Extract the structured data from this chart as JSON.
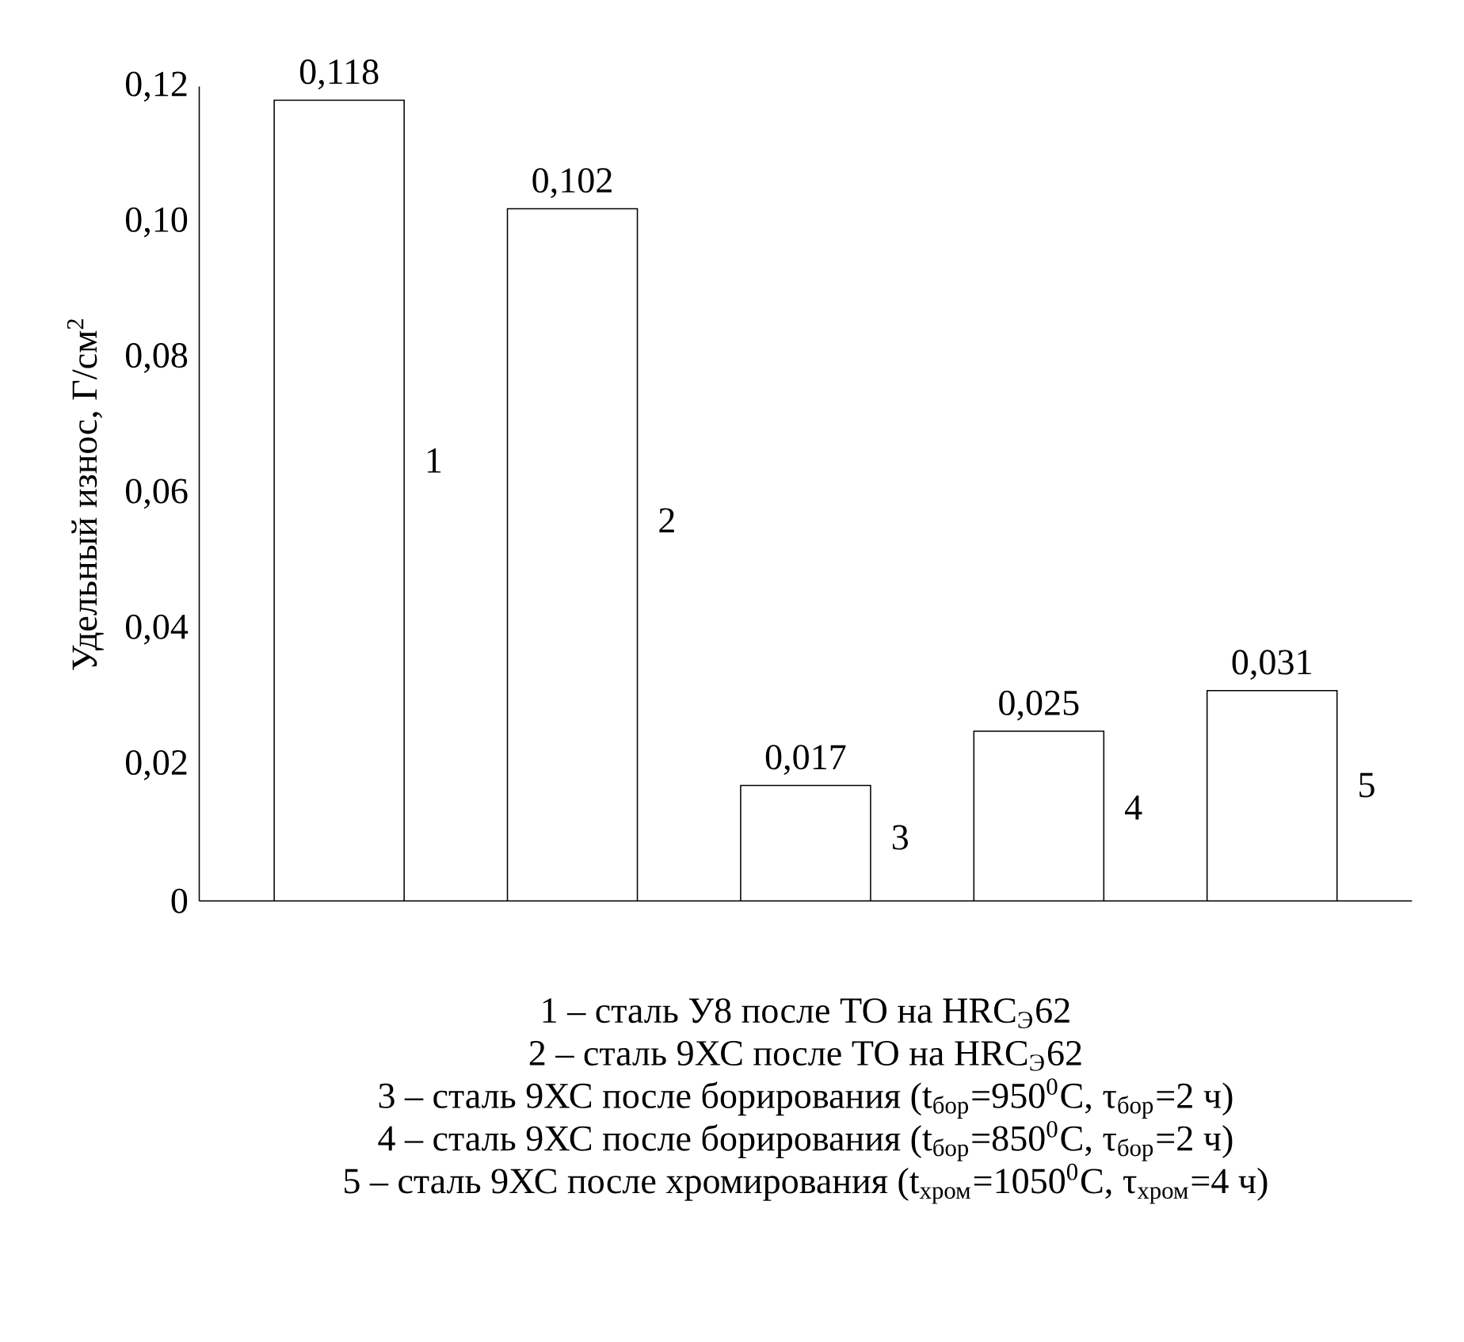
{
  "chart_data": {
    "type": "bar",
    "categories": [
      "1",
      "2",
      "3",
      "4",
      "5"
    ],
    "values": [
      0.118,
      0.102,
      0.017,
      0.025,
      0.031
    ],
    "value_labels": [
      "0,118",
      "0,102",
      "0,017",
      "0,025",
      "0,031"
    ],
    "color": "#ffffff",
    "ylabel": "Удельный износ, Г/см$^{2}$",
    "ylim": [
      0,
      0.12
    ],
    "yticks": [
      0,
      {
        "value": 0.02,
        "label": "0,02"
      },
      {
        "value": 0.04,
        "label": "0,04"
      },
      {
        "value": 0.06,
        "label": "0,06"
      },
      {
        "value": 0.08,
        "label": "0,08"
      },
      {
        "value": 0.1,
        "label": "0,10"
      },
      {
        "value": 0.12,
        "label": "0,12"
      }
    ],
    "grid": false,
    "annotations": [
      "1 – сталь У8 после ТО на HRC$_{Э}$62",
      "2 – сталь 9ХС после ТО на HRC$_{Э}$62",
      "3 – сталь 9ХС после борирования (t$_{бор}$=950$^{0}$C, τ$_{бор}$=2 ч)",
      "4 – сталь 9ХС после борирования (t$_{бор}$=850$^{0}$C, τ$_{бор}$=2 ч)",
      "5 – сталь 9ХС после хромирования (t$_{хром}$=1050$^{0}$C, τ$_{хром}$=4 ч)"
    ]
  }
}
